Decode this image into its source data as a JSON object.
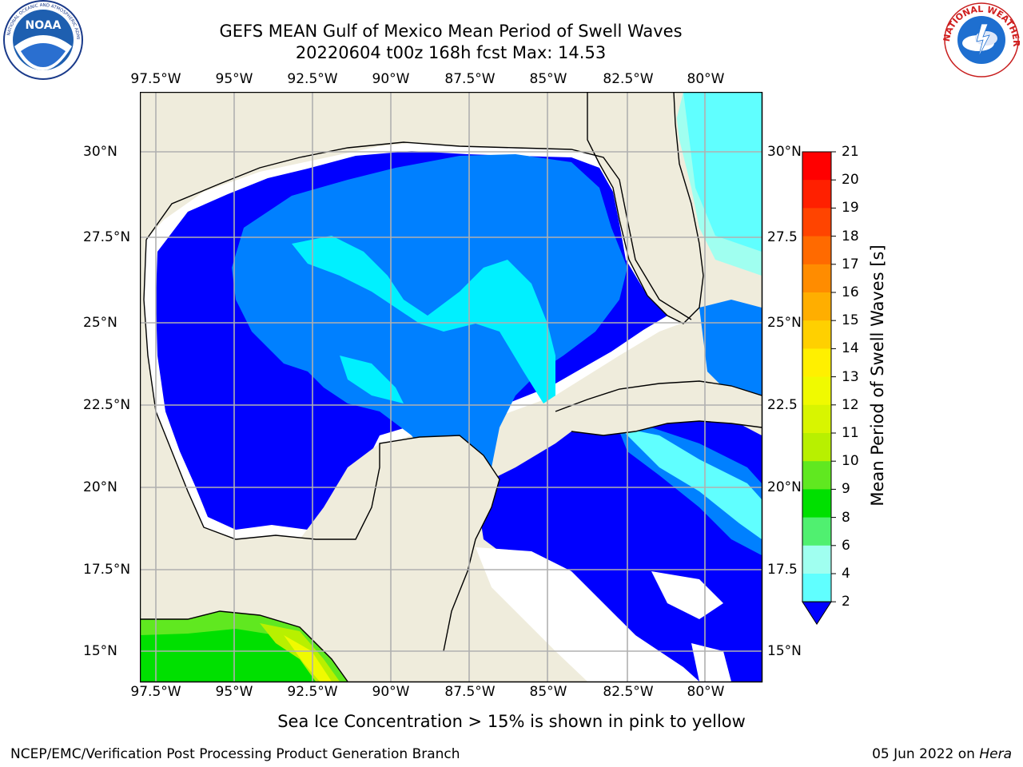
{
  "title_line1": "GEFS MEAN Gulf of Mexico Mean Period of Swell Waves",
  "title_line2": "20220604 t00z 168h fcst   Max: 14.53",
  "note": "Sea Ice Concentration > 15% is shown in pink to yellow",
  "footer_left": "NCEP/EMC/Verification Post Processing Product Generation Branch",
  "footer_date": "05 Jun 2022 on",
  "footer_system": "Hera",
  "logos": {
    "noaa": {
      "text": "NOAA",
      "ring_text": "NATIONAL OCEANIC AND ATMOSPHERIC ADMINISTRATION · U.S. DEPARTMENT OF COMMERCE"
    },
    "nws": {
      "ring_text": "NATIONAL WEATHER SERVICE"
    }
  },
  "map": {
    "lon_ticks": [
      "97.5°W",
      "95°W",
      "92.5°W",
      "90°W",
      "87.5°W",
      "85°W",
      "82.5°W",
      "80°W"
    ],
    "lat_ticks_left": [
      "30°N",
      "27.5°N",
      "25°N",
      "22.5°N",
      "20°N",
      "17.5°N",
      "15°N"
    ],
    "lat_ticks_right": [
      "30°N",
      "27.5",
      "25°N",
      "22.5",
      "20°N",
      "17.5",
      "15°N"
    ],
    "land_color": "#efecdc",
    "grid_color": "#b0b0b0"
  },
  "colorbar": {
    "label": "Mean Period of Swell Waves [s]",
    "ticks": [
      "21",
      "20",
      "19",
      "18",
      "17",
      "16",
      "15",
      "14",
      "13",
      "12",
      "11",
      "10",
      "9",
      "8",
      "6",
      "4",
      "2"
    ],
    "colors_top_to_bottom": [
      "#ff0000",
      "#ff2000",
      "#ff4400",
      "#ff6a00",
      "#ff8c00",
      "#ffae00",
      "#ffd000",
      "#fff000",
      "#f0fa00",
      "#d8f500",
      "#b8f000",
      "#60e820",
      "#00e000",
      "#50f070",
      "#a0fff0",
      "#60ffff",
      "#00f0ff",
      "#0080ff"
    ],
    "extend_color": "#0000ff"
  },
  "chart_data": {
    "type": "heatmap",
    "region": "Gulf of Mexico",
    "lon_range": [
      -98.5,
      -78.5
    ],
    "lat_range": [
      14,
      31.8
    ],
    "max_value": 14.53,
    "levels": [
      2,
      4,
      6,
      8,
      9,
      10,
      11,
      12,
      13,
      14,
      15,
      16,
      17,
      18,
      19,
      20,
      21
    ]
  }
}
